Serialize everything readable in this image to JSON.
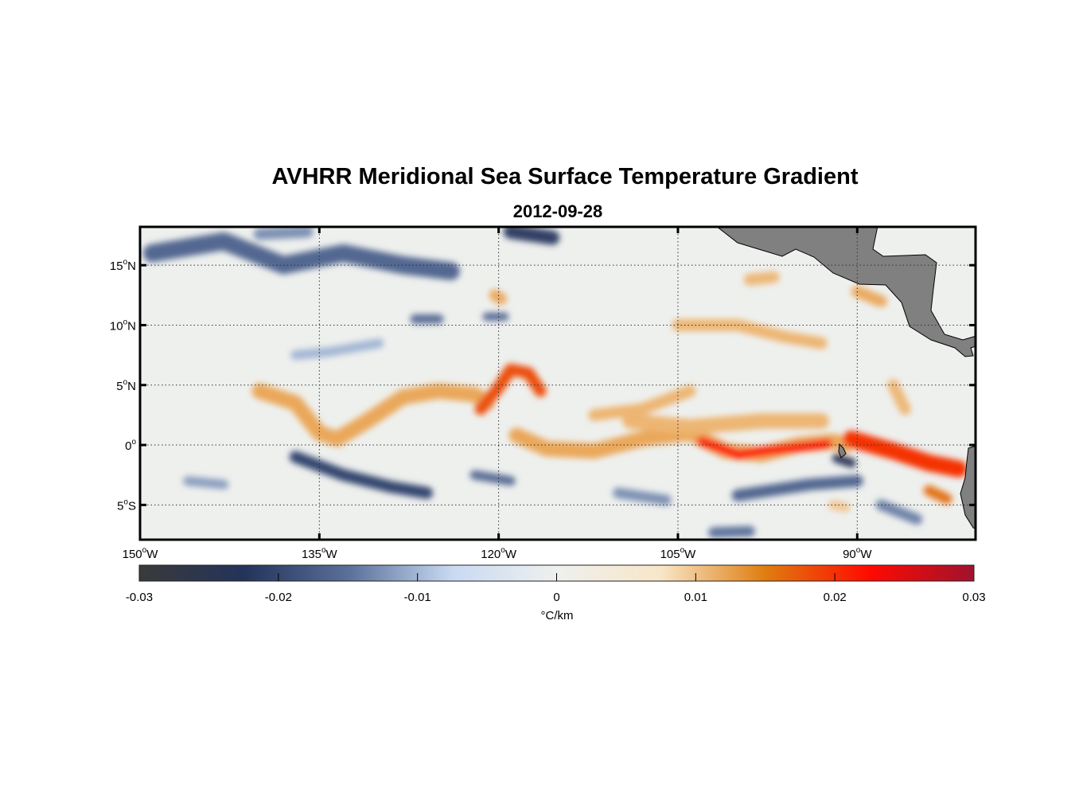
{
  "title": "AVHRR Meridional Sea Surface Temperature Gradient",
  "subtitle": "2012-09-28",
  "chart_data": {
    "type": "heatmap",
    "title": "AVHRR Meridional Sea Surface Temperature Gradient",
    "subtitle": "2012-09-28",
    "lon_range": [
      -150,
      -80.1
    ],
    "lat_range": [
      -7.9,
      18.2
    ],
    "x_ticks": [
      {
        "value": -150,
        "deg": "150",
        "hemi": "W"
      },
      {
        "value": -135,
        "deg": "135",
        "hemi": "W"
      },
      {
        "value": -120,
        "deg": "120",
        "hemi": "W"
      },
      {
        "value": -105,
        "deg": "105",
        "hemi": "W"
      },
      {
        "value": -90,
        "deg": "90",
        "hemi": "W"
      }
    ],
    "y_ticks": [
      {
        "value": 15,
        "deg": "15",
        "hemi": "N"
      },
      {
        "value": 10,
        "deg": "10",
        "hemi": "N"
      },
      {
        "value": 5,
        "deg": "5",
        "hemi": "N"
      },
      {
        "value": 0,
        "deg": "0",
        "hemi": ""
      },
      {
        "value": -5,
        "deg": "5",
        "hemi": "S"
      }
    ],
    "grid": true,
    "colorbar": {
      "range": [
        -0.03,
        0.03
      ],
      "ticks": [
        "-0.03",
        "-0.02",
        "-0.01",
        "0",
        "0.01",
        "0.02",
        "0.03"
      ],
      "label": "°C/km",
      "colors": [
        "#3a3a3a",
        "#23335a",
        "#5a6f99",
        "#c8daf2",
        "#eef0ee",
        "#f8e6c8",
        "#e07d10",
        "#ff0a00",
        "#a0122e"
      ]
    },
    "features": [
      {
        "value": 0.012,
        "width": 1.3,
        "points": [
          [
            -140,
            4.5
          ],
          [
            -137,
            3.5
          ],
          [
            -135,
            1
          ],
          [
            -133.5,
            0.5
          ],
          [
            -131,
            2
          ],
          [
            -128,
            4
          ],
          [
            -125,
            4.5
          ],
          [
            -122,
            4.2
          ],
          [
            -121,
            3.5
          ]
        ]
      },
      {
        "value": 0.018,
        "width": 1.0,
        "points": [
          [
            -121.5,
            3
          ],
          [
            -120,
            4.8
          ],
          [
            -119,
            6.3
          ],
          [
            -117.5,
            6
          ],
          [
            -116.5,
            4.5
          ]
        ]
      },
      {
        "value": 0.012,
        "width": 1.3,
        "points": [
          [
            -118.5,
            0.8
          ],
          [
            -116,
            -0.3
          ],
          [
            -112,
            -0.5
          ],
          [
            -108,
            0.5
          ],
          [
            -104,
            1
          ],
          [
            -101,
            -0.5
          ],
          [
            -98,
            -0.8
          ],
          [
            -95,
            0
          ],
          [
            -92,
            0.3
          ],
          [
            -91,
            0
          ]
        ]
      },
      {
        "value": 0.022,
        "width": 0.8,
        "points": [
          [
            -103,
            0.3
          ],
          [
            -100,
            -0.8
          ],
          [
            -96,
            -0.3
          ],
          [
            -92.5,
            0.1
          ]
        ]
      },
      {
        "value": 0.011,
        "width": 1.0,
        "points": [
          [
            -112,
            2.5
          ],
          [
            -108,
            3
          ],
          [
            -104,
            4.5
          ]
        ]
      },
      {
        "value": 0.011,
        "width": 1.3,
        "points": [
          [
            -109,
            2
          ],
          [
            -104,
            1.5
          ],
          [
            -98,
            2
          ],
          [
            -93,
            2
          ]
        ]
      },
      {
        "value": 0.02,
        "width": 1.4,
        "points": [
          [
            -90.5,
            0.5
          ],
          [
            -87,
            -0.5
          ],
          [
            -84,
            -1.5
          ],
          [
            -81.5,
            -2
          ]
        ]
      },
      {
        "value": 0.011,
        "width": 1.0,
        "points": [
          [
            -105,
            10
          ],
          [
            -100,
            10
          ],
          [
            -96,
            9
          ],
          [
            -93,
            8.5
          ]
        ]
      },
      {
        "value": 0.012,
        "width": 1.0,
        "points": [
          [
            -90,
            12.8
          ],
          [
            -88,
            12
          ]
        ]
      },
      {
        "value": 0.011,
        "width": 1.0,
        "points": [
          [
            -99,
            13.8
          ],
          [
            -97,
            14
          ]
        ]
      },
      {
        "value": 0.012,
        "width": 1.0,
        "points": [
          [
            -120.3,
            12.5
          ],
          [
            -119.8,
            12.2
          ]
        ]
      },
      {
        "value": 0.011,
        "width": 1.0,
        "points": [
          [
            -87,
            5
          ],
          [
            -86,
            3
          ]
        ]
      },
      {
        "value": 0.016,
        "width": 0.9,
        "points": [
          [
            -84,
            -3.8
          ],
          [
            -82.5,
            -4.5
          ]
        ]
      },
      {
        "value": 0.01,
        "width": 0.8,
        "points": [
          [
            -92,
            -5
          ],
          [
            -91,
            -5.2
          ]
        ]
      },
      {
        "value": -0.02,
        "width": 1.0,
        "points": [
          [
            -137,
            -1
          ],
          [
            -133,
            -2.5
          ],
          [
            -129,
            -3.5
          ],
          [
            -126,
            -4
          ]
        ]
      },
      {
        "value": -0.016,
        "width": 0.8,
        "points": [
          [
            -122,
            -2.5
          ],
          [
            -119,
            -3
          ]
        ]
      },
      {
        "value": -0.016,
        "width": 1.5,
        "points": [
          [
            -149,
            16
          ],
          [
            -143,
            17
          ],
          [
            -138,
            15
          ],
          [
            -133,
            16
          ],
          [
            -128,
            15
          ],
          [
            -124,
            14.5
          ]
        ]
      },
      {
        "value": -0.022,
        "width": 1.2,
        "points": [
          [
            -119,
            17.8
          ],
          [
            -115.5,
            17.3
          ]
        ]
      },
      {
        "value": -0.013,
        "width": 1.0,
        "points": [
          [
            -140,
            17.6
          ],
          [
            -136,
            17.8
          ]
        ]
      },
      {
        "value": -0.016,
        "width": 1.0,
        "points": [
          [
            -100,
            -4.2
          ],
          [
            -94,
            -3.3
          ],
          [
            -90,
            -3
          ]
        ]
      },
      {
        "value": -0.024,
        "width": 0.8,
        "points": [
          [
            -91.7,
            -1.1
          ],
          [
            -90.5,
            -1.5
          ]
        ]
      },
      {
        "value": -0.016,
        "width": 0.8,
        "points": [
          [
            -127,
            10.5
          ],
          [
            -125,
            10.5
          ]
        ]
      },
      {
        "value": -0.016,
        "width": 0.7,
        "points": [
          [
            -121,
            10.7
          ],
          [
            -119.5,
            10.7
          ]
        ]
      },
      {
        "value": -0.013,
        "width": 0.9,
        "points": [
          [
            -110,
            -4
          ],
          [
            -106,
            -4.6
          ]
        ]
      },
      {
        "value": -0.014,
        "width": 0.9,
        "points": [
          [
            -88,
            -5
          ],
          [
            -85,
            -6.2
          ]
        ]
      },
      {
        "value": -0.015,
        "width": 0.9,
        "points": [
          [
            -102,
            -7.3
          ],
          [
            -99,
            -7.2
          ]
        ]
      },
      {
        "value": -0.012,
        "width": 0.8,
        "points": [
          [
            -146,
            -3
          ],
          [
            -143,
            -3.3
          ]
        ]
      },
      {
        "value": -0.01,
        "width": 0.8,
        "points": [
          [
            -137,
            7.5
          ],
          [
            -134,
            7.8
          ],
          [
            -130,
            8.5
          ]
        ]
      }
    ]
  }
}
